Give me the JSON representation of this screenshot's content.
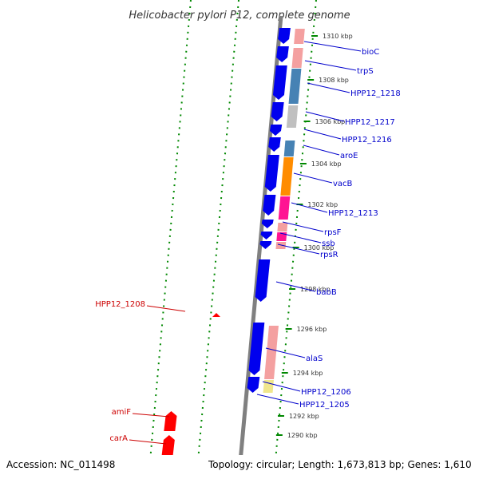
{
  "title": "Helicobacter pylori P12, complete genome",
  "footer": {
    "accession": "Accession: NC_011498",
    "topology": "Topology: circular; Length: 1,673,813 bp; Genes: 1,610"
  },
  "colors": {
    "forward_label": "#0000cc",
    "reverse_label": "#cc0000",
    "forward_gene": "#0000ee",
    "reverse_gene": "#ff0000",
    "backbone": "#808080",
    "tick": "#008800"
  },
  "ticks": [
    {
      "label": "1310 kbp"
    },
    {
      "label": "1308 kbp"
    },
    {
      "label": "1306 kbp"
    },
    {
      "label": "1304 kbp"
    },
    {
      "label": "1302 kbp"
    },
    {
      "label": "1300 kbp"
    },
    {
      "label": "1298 kbp"
    },
    {
      "label": "1296 kbp"
    },
    {
      "label": "1294 kbp"
    },
    {
      "label": "1292 kbp"
    },
    {
      "label": "1290 kbp"
    }
  ],
  "forward_labels": [
    {
      "name": "bioC"
    },
    {
      "name": "trpS"
    },
    {
      "name": "HPP12_1218"
    },
    {
      "name": "HPP12_1217"
    },
    {
      "name": "HPP12_1216"
    },
    {
      "name": "aroE"
    },
    {
      "name": "vacB"
    },
    {
      "name": "HPP12_1213"
    },
    {
      "name": "rpsF"
    },
    {
      "name": "ssb"
    },
    {
      "name": "rpsR"
    },
    {
      "name": "babB"
    },
    {
      "name": "alaS"
    },
    {
      "name": "HPP12_1206"
    },
    {
      "name": "HPP12_1205"
    }
  ],
  "reverse_labels": [
    {
      "name": "HPP12_1208"
    },
    {
      "name": "amiF"
    },
    {
      "name": "carA"
    }
  ]
}
